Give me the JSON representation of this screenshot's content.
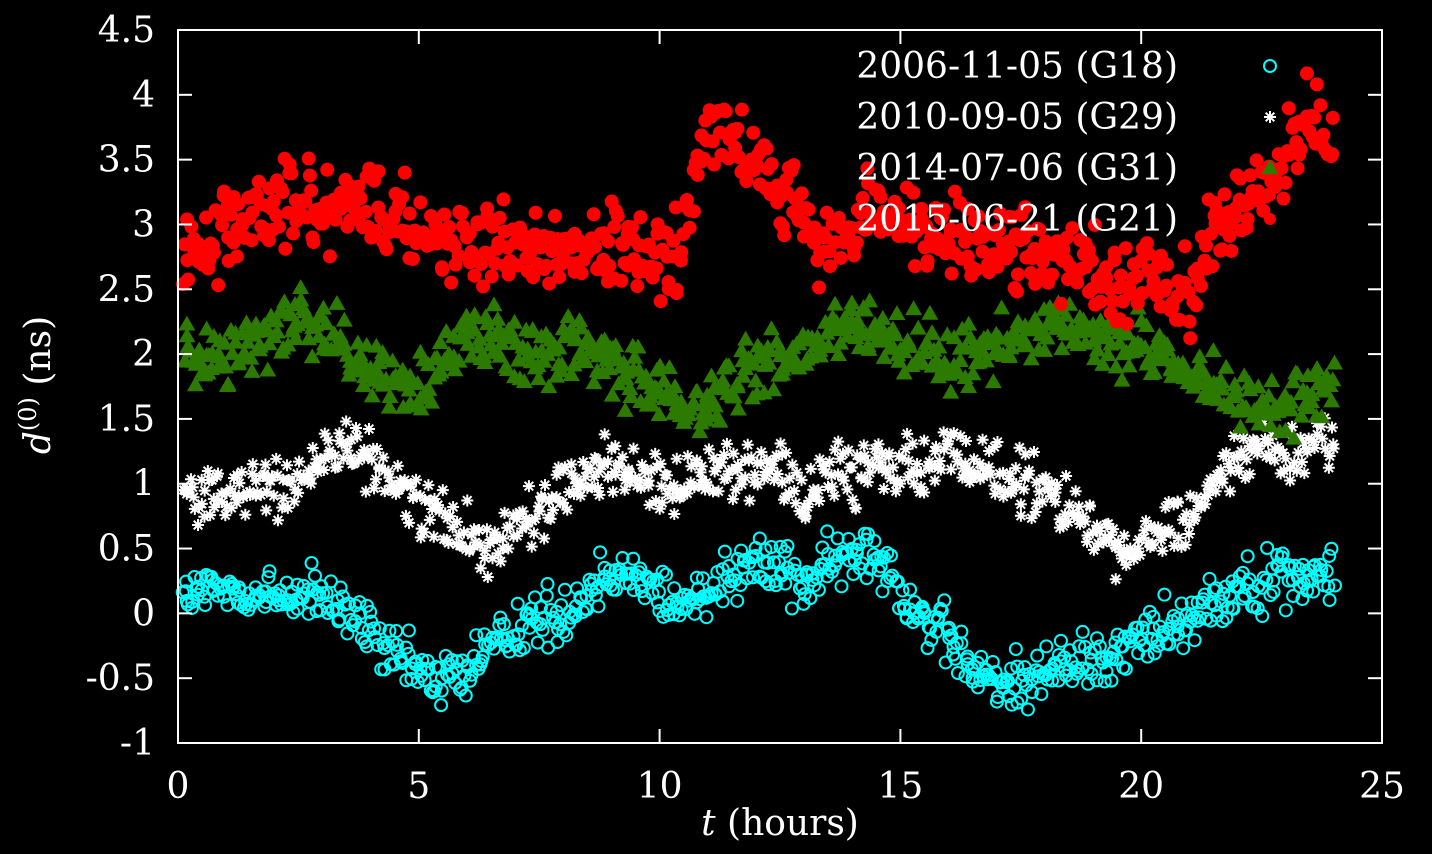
{
  "chart_data": {
    "type": "scatter",
    "title": "",
    "xlabel_var": "t",
    "xlabel_rest": " (hours)",
    "ylabel_var": "d",
    "ylabel_sup": "(0)",
    "ylabel_rest": " (ns)",
    "xlim": [
      0,
      25
    ],
    "ylim": [
      -1,
      4.5
    ],
    "x_ticks": [
      "0",
      "5",
      "10",
      "15",
      "20",
      "25"
    ],
    "y_ticks": [
      "-1",
      "-0.5",
      "0",
      "0.5",
      "1",
      "1.5",
      "2",
      "2.5",
      "3",
      "3.5",
      "4",
      "4.5"
    ],
    "grid": false,
    "legend_position": "top-right",
    "background": "#000000",
    "axis_color": "#ffffff",
    "series": [
      {
        "name": "2006-11-05 (G18)",
        "marker": "circle-open",
        "color": "#00ffff",
        "x": [
          0,
          0.5,
          1,
          1.5,
          2,
          2.5,
          3,
          3.5,
          4,
          4.5,
          5,
          5.5,
          6,
          6.5,
          7,
          7.5,
          8,
          8.5,
          9,
          9.5,
          10,
          10.5,
          11,
          11.5,
          12,
          12.5,
          13,
          13.5,
          14,
          14.5,
          15,
          15.5,
          16,
          16.5,
          17,
          17.5,
          18,
          18.5,
          19,
          19.5,
          20,
          20.5,
          21,
          21.5,
          22,
          22.5,
          23,
          23.5,
          24
        ],
        "y": [
          0.1,
          0.15,
          0.18,
          0.15,
          0.12,
          0.15,
          0.1,
          0.0,
          -0.15,
          -0.35,
          -0.45,
          -0.5,
          -0.45,
          -0.25,
          -0.1,
          -0.05,
          0.0,
          0.15,
          0.35,
          0.3,
          0.15,
          0.05,
          0.2,
          0.35,
          0.4,
          0.35,
          0.25,
          0.35,
          0.45,
          0.5,
          0.2,
          -0.05,
          -0.2,
          -0.45,
          -0.55,
          -0.5,
          -0.45,
          -0.4,
          -0.35,
          -0.3,
          -0.2,
          -0.1,
          0.0,
          0.1,
          0.2,
          0.25,
          0.3,
          0.25,
          0.25
        ],
        "spread": 0.22
      },
      {
        "name": "2010-09-05 (G29)",
        "marker": "asterisk",
        "color": "#ffffff",
        "x": [
          0,
          0.5,
          1,
          1.5,
          2,
          2.5,
          3,
          3.5,
          4,
          4.5,
          5,
          5.5,
          6,
          6.5,
          7,
          7.5,
          8,
          8.5,
          9,
          9.5,
          10,
          10.5,
          11,
          11.5,
          12,
          12.5,
          13,
          13.5,
          14,
          14.5,
          15,
          15.5,
          16,
          16.5,
          17,
          17.5,
          18,
          18.5,
          19,
          19.5,
          20,
          20.5,
          21,
          21.5,
          22,
          22.5,
          23,
          23.5,
          24
        ],
        "y": [
          0.95,
          0.9,
          0.9,
          0.95,
          0.95,
          1.05,
          1.2,
          1.25,
          1.2,
          1.0,
          0.85,
          0.7,
          0.6,
          0.55,
          0.6,
          0.8,
          1.0,
          1.05,
          1.15,
          1.1,
          1.0,
          0.95,
          1.1,
          1.1,
          1.15,
          1.1,
          0.95,
          1.05,
          1.1,
          1.2,
          1.15,
          1.1,
          1.2,
          1.15,
          1.05,
          1.0,
          0.95,
          0.8,
          0.65,
          0.45,
          0.55,
          0.6,
          0.75,
          1.05,
          1.2,
          1.25,
          1.2,
          1.25,
          1.35
        ],
        "spread": 0.22
      },
      {
        "name": "2014-07-06 (G31)",
        "marker": "triangle-open",
        "color": "#2d7a00",
        "x": [
          0,
          0.5,
          1,
          1.5,
          2,
          2.5,
          3,
          3.5,
          4,
          4.5,
          5,
          5.5,
          6,
          6.5,
          7,
          7.5,
          8,
          8.5,
          9,
          9.5,
          10,
          10.5,
          11,
          11.5,
          12,
          12.5,
          13,
          13.5,
          14,
          14.5,
          15,
          15.5,
          16,
          16.5,
          17,
          17.5,
          18,
          18.5,
          19,
          19.5,
          20,
          20.5,
          21,
          21.5,
          22,
          22.5,
          23,
          23.5,
          24
        ],
        "y": [
          2.0,
          1.95,
          1.95,
          2.05,
          2.15,
          2.25,
          2.2,
          2.05,
          1.85,
          1.75,
          1.8,
          1.95,
          2.1,
          2.15,
          2.05,
          2.05,
          2.05,
          2.05,
          2.0,
          1.85,
          1.7,
          1.55,
          1.6,
          1.8,
          1.9,
          1.95,
          2.0,
          2.15,
          2.25,
          2.2,
          2.1,
          2.05,
          1.95,
          1.95,
          2.05,
          2.15,
          2.3,
          2.25,
          2.15,
          2.1,
          2.05,
          1.95,
          1.85,
          1.75,
          1.65,
          1.6,
          1.6,
          1.7,
          1.75
        ],
        "spread": 0.24
      },
      {
        "name": "2015-06-21 (G21)",
        "marker": "circle-filled",
        "color": "#ff0000",
        "x": [
          0,
          0.5,
          1,
          1.5,
          2,
          2.5,
          3,
          3.5,
          4,
          4.5,
          5,
          5.5,
          6,
          6.5,
          7,
          7.5,
          8,
          8.5,
          9,
          9.5,
          10,
          10.5,
          11,
          11.5,
          12,
          12.5,
          13,
          13.5,
          14,
          14.5,
          15,
          15.5,
          16,
          16.5,
          17,
          17.5,
          18,
          18.5,
          19,
          19.5,
          20,
          20.5,
          21,
          21.5,
          22,
          22.5,
          23,
          23.5,
          24
        ],
        "y": [
          2.6,
          2.8,
          3.0,
          3.05,
          3.15,
          3.2,
          3.1,
          3.15,
          3.15,
          3.1,
          3.0,
          2.9,
          2.85,
          2.8,
          2.85,
          2.8,
          2.85,
          2.8,
          2.75,
          2.75,
          2.75,
          2.8,
          3.85,
          3.65,
          3.5,
          3.2,
          2.95,
          2.9,
          3.0,
          3.1,
          3.0,
          2.95,
          2.85,
          2.9,
          2.85,
          2.8,
          2.75,
          2.7,
          2.6,
          2.55,
          2.6,
          2.5,
          2.35,
          2.9,
          3.1,
          3.3,
          3.5,
          3.85,
          3.6
        ],
        "spread": 0.32
      }
    ]
  }
}
